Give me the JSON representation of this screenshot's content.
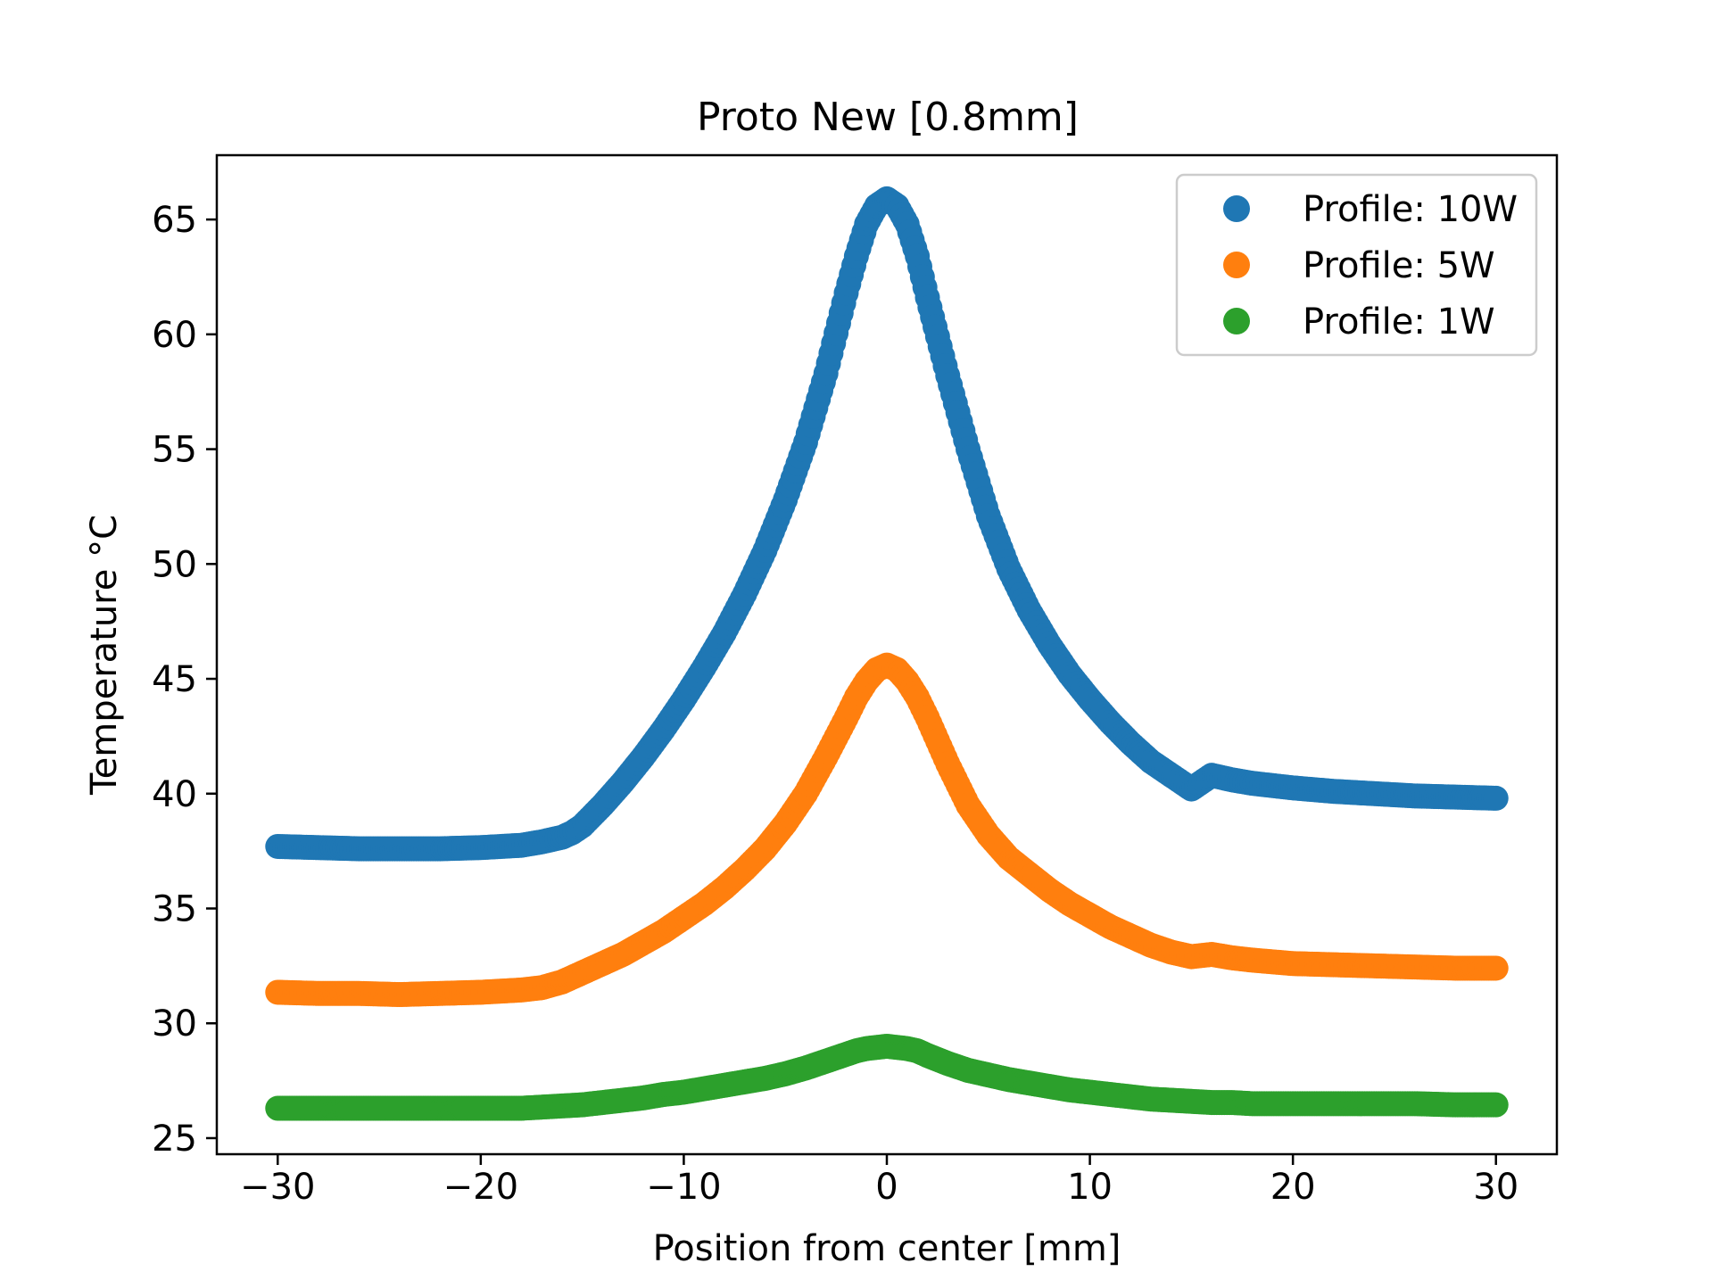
{
  "chart_data": {
    "type": "scatter",
    "title": "Proto New [0.8mm]",
    "xlabel": "Position from center [mm]",
    "ylabel": "Temperature °C",
    "xlim": [
      -33,
      33
    ],
    "ylim": [
      24.3,
      67.8
    ],
    "xticks": [
      -30,
      -20,
      -10,
      0,
      10,
      20,
      30
    ],
    "xtick_labels": [
      "−30",
      "−20",
      "−10",
      "0",
      "10",
      "20",
      "30"
    ],
    "yticks": [
      25,
      30,
      35,
      40,
      45,
      50,
      55,
      60,
      65
    ],
    "ytick_labels": [
      "25",
      "30",
      "35",
      "40",
      "45",
      "50",
      "55",
      "60",
      "65"
    ],
    "grid": false,
    "legend_position": "top-right",
    "series": [
      {
        "name": "Profile: 10W",
        "color": "#1f77b4",
        "x": [
          -30,
          -28,
          -26,
          -24,
          -22,
          -20,
          -18,
          -17,
          -16,
          -15.5,
          -15,
          -14,
          -13,
          -12,
          -11,
          -10,
          -9,
          -8,
          -7,
          -6,
          -5,
          -4,
          -3,
          -2,
          -1.5,
          -1,
          -0.5,
          0,
          0.5,
          1,
          1.5,
          2,
          3,
          4,
          5,
          6,
          7,
          8,
          9,
          10,
          11,
          12,
          13,
          14,
          15,
          16,
          17,
          18,
          20,
          22,
          24,
          26,
          28,
          30
        ],
        "y": [
          37.7,
          37.65,
          37.6,
          37.6,
          37.6,
          37.65,
          37.75,
          37.9,
          38.1,
          38.3,
          38.6,
          39.5,
          40.5,
          41.6,
          42.8,
          44.1,
          45.5,
          47.0,
          48.7,
          50.6,
          52.8,
          55.3,
          58.3,
          61.8,
          63.4,
          64.8,
          65.6,
          65.9,
          65.6,
          64.8,
          63.4,
          61.6,
          58.2,
          55.0,
          52.1,
          49.8,
          48.0,
          46.5,
          45.2,
          44.1,
          43.1,
          42.2,
          41.4,
          40.8,
          40.2,
          40.8,
          40.6,
          40.45,
          40.25,
          40.1,
          40.0,
          39.9,
          39.85,
          39.8
        ]
      },
      {
        "name": "Profile: 5W",
        "color": "#ff7f0e",
        "x": [
          -30,
          -28,
          -26,
          -24,
          -22,
          -20,
          -18,
          -17,
          -16,
          -15,
          -14,
          -13,
          -12,
          -11,
          -10,
          -9,
          -8,
          -7,
          -6,
          -5,
          -4,
          -3,
          -2,
          -1.5,
          -1,
          -0.5,
          0,
          0.5,
          1,
          1.5,
          2,
          3,
          4,
          5,
          6,
          7,
          8,
          9,
          10,
          11,
          12,
          13,
          14,
          15,
          16,
          17,
          18,
          20,
          22,
          24,
          26,
          28,
          30
        ],
        "y": [
          31.35,
          31.3,
          31.3,
          31.25,
          31.3,
          31.35,
          31.45,
          31.55,
          31.8,
          32.2,
          32.6,
          33.0,
          33.5,
          34.0,
          34.6,
          35.2,
          35.9,
          36.7,
          37.6,
          38.7,
          40.0,
          41.6,
          43.3,
          44.2,
          44.9,
          45.4,
          45.6,
          45.4,
          44.9,
          44.2,
          43.3,
          41.3,
          39.5,
          38.2,
          37.2,
          36.5,
          35.8,
          35.2,
          34.7,
          34.2,
          33.8,
          33.4,
          33.1,
          32.9,
          33.0,
          32.85,
          32.75,
          32.6,
          32.55,
          32.5,
          32.45,
          32.4,
          32.4
        ]
      },
      {
        "name": "Profile: 1W",
        "color": "#2ca02c",
        "x": [
          -30,
          -28,
          -26,
          -24,
          -22,
          -20,
          -18,
          -17,
          -16,
          -15,
          -14,
          -13,
          -12,
          -11,
          -10,
          -9,
          -8,
          -7,
          -6,
          -5,
          -4,
          -3,
          -2,
          -1.5,
          -1,
          -0.5,
          0,
          0.5,
          1,
          1.5,
          2,
          3,
          4,
          5,
          6,
          7,
          8,
          9,
          10,
          11,
          12,
          13,
          14,
          15,
          16,
          17,
          18,
          20,
          22,
          24,
          26,
          28,
          30
        ],
        "y": [
          26.3,
          26.3,
          26.3,
          26.3,
          26.3,
          26.3,
          26.3,
          26.35,
          26.4,
          26.45,
          26.55,
          26.65,
          26.75,
          26.9,
          27.0,
          27.15,
          27.3,
          27.45,
          27.6,
          27.8,
          28.05,
          28.35,
          28.65,
          28.8,
          28.9,
          28.95,
          29.0,
          28.95,
          28.9,
          28.8,
          28.6,
          28.25,
          27.95,
          27.75,
          27.55,
          27.4,
          27.25,
          27.1,
          27.0,
          26.9,
          26.8,
          26.7,
          26.65,
          26.6,
          26.55,
          26.55,
          26.5,
          26.5,
          26.5,
          26.5,
          26.5,
          26.45,
          26.45
        ]
      }
    ]
  }
}
